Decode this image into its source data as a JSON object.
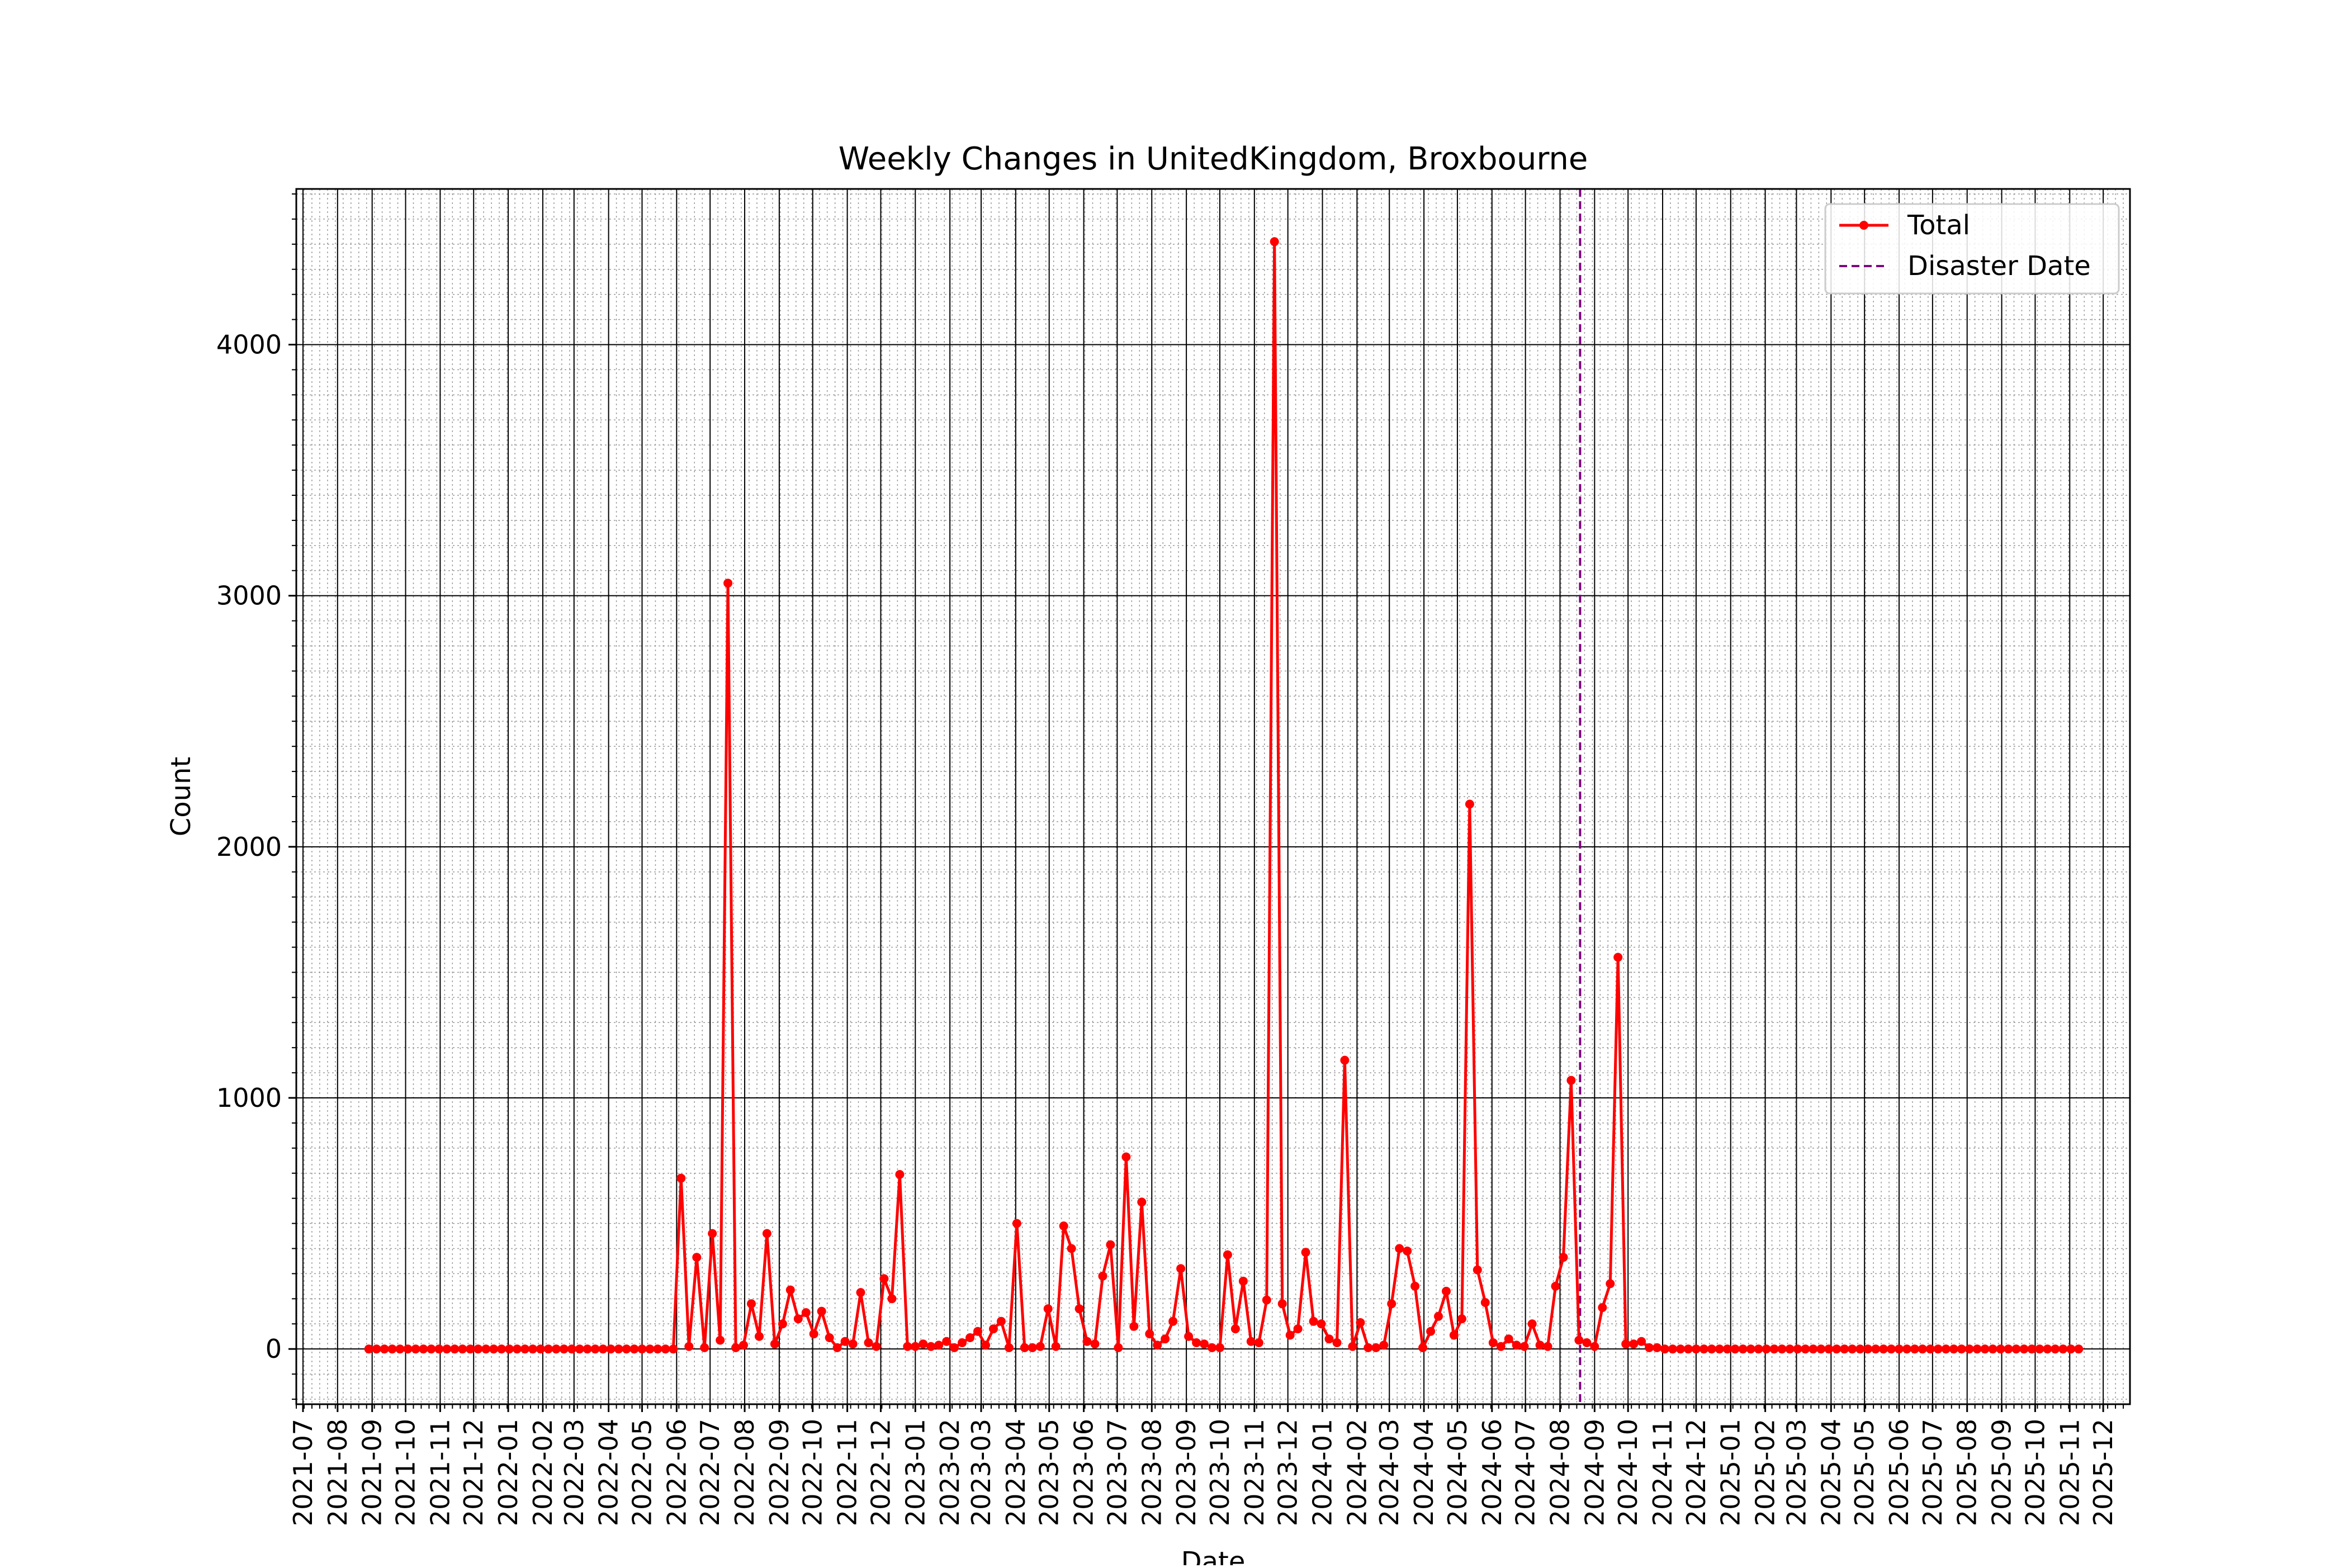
{
  "chart_data": {
    "type": "line",
    "title": "Weekly Changes in UnitedKingdom, Broxbourne",
    "xlabel": "Date",
    "ylabel": "Count",
    "ylim": [
      -220,
      4620
    ],
    "xlim": [
      "2021-06-25",
      "2025-12-25"
    ],
    "yticks": [
      0,
      1000,
      2000,
      3000,
      4000
    ],
    "xticks": [
      "2021-07",
      "2021-08",
      "2021-09",
      "2021-10",
      "2021-11",
      "2021-12",
      "2022-01",
      "2022-02",
      "2022-03",
      "2022-04",
      "2022-05",
      "2022-06",
      "2022-07",
      "2022-08",
      "2022-09",
      "2022-10",
      "2022-11",
      "2022-12",
      "2023-01",
      "2023-02",
      "2023-03",
      "2023-04",
      "2023-05",
      "2023-06",
      "2023-07",
      "2023-08",
      "2023-09",
      "2023-10",
      "2023-11",
      "2023-12",
      "2024-01",
      "2024-02",
      "2024-03",
      "2024-04",
      "2024-05",
      "2024-06",
      "2024-07",
      "2024-08",
      "2024-09",
      "2024-10",
      "2024-11",
      "2024-12",
      "2025-01",
      "2025-02",
      "2025-03",
      "2025-04",
      "2025-05",
      "2025-06",
      "2025-07",
      "2025-08",
      "2025-09",
      "2025-10",
      "2025-11",
      "2025-12"
    ],
    "grid": true,
    "legend_position": "top-right",
    "series": [
      {
        "name": "Total",
        "color": "#ff0000",
        "marker": "circle",
        "start_date": "2021-08-29",
        "interval_days": 7,
        "values": [
          0,
          0,
          0,
          0,
          0,
          0,
          0,
          0,
          0,
          0,
          0,
          0,
          0,
          0,
          0,
          0,
          0,
          0,
          0,
          0,
          0,
          0,
          0,
          0,
          0,
          0,
          0,
          0,
          0,
          0,
          0,
          0,
          0,
          0,
          0,
          0,
          0,
          0,
          0,
          0,
          680,
          10,
          365,
          5,
          460,
          35,
          3050,
          5,
          15,
          180,
          50,
          460,
          20,
          100,
          235,
          120,
          145,
          60,
          150,
          45,
          5,
          30,
          20,
          225,
          25,
          10,
          280,
          200,
          695,
          10,
          10,
          20,
          10,
          15,
          30,
          5,
          25,
          45,
          70,
          15,
          80,
          110,
          5,
          500,
          5,
          5,
          10,
          160,
          10,
          490,
          400,
          160,
          30,
          20,
          290,
          415,
          5,
          765,
          90,
          585,
          60,
          15,
          40,
          110,
          320,
          50,
          25,
          20,
          5,
          5,
          375,
          80,
          270,
          30,
          25,
          195,
          4410,
          180,
          55,
          80,
          385,
          110,
          100,
          40,
          25,
          1150,
          10,
          105,
          5,
          5,
          15,
          180,
          400,
          390,
          250,
          5,
          70,
          130,
          230,
          55,
          120,
          2170,
          315,
          185,
          25,
          10,
          40,
          15,
          10,
          100,
          15,
          10,
          250,
          365,
          1070,
          35,
          25,
          10,
          165,
          260,
          1560,
          20,
          20,
          30,
          5,
          5,
          0,
          0,
          0,
          0,
          0,
          0,
          0,
          0,
          0,
          0,
          0,
          0,
          0,
          0,
          0,
          0,
          0,
          0,
          0,
          0,
          0,
          0,
          0,
          0,
          0,
          0,
          0,
          0,
          0,
          0,
          0,
          0,
          0,
          0,
          0,
          0,
          0,
          0,
          0,
          0,
          0,
          0,
          0,
          0,
          0,
          0,
          0,
          0,
          0,
          0,
          0,
          0,
          0,
          0
        ]
      }
    ],
    "vlines": [
      {
        "name": "Disaster Date",
        "date": "2024-08-19",
        "color": "#800080",
        "style": "dashed"
      }
    ]
  }
}
